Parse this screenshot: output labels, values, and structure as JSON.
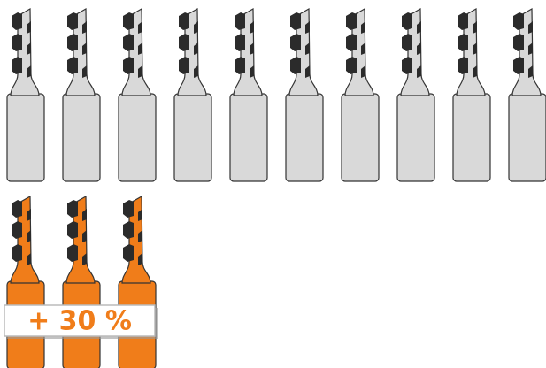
{
  "rows": [
    {
      "count": 10,
      "color": "#d9d9d9"
    },
    {
      "count": 3,
      "color": "#f07d1a"
    }
  ],
  "label": "+ 30 %"
}
